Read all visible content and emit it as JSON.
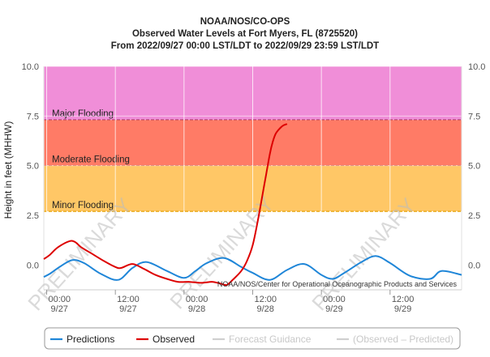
{
  "chart_data": {
    "type": "line",
    "title": [
      "NOAA/NOS/CO-OPS",
      "Observed Water Levels at Fort Myers, FL (8725520)",
      "From 2022/09/27 00:00 LST/LDT to 2022/09/29 23:59 LST/LDT"
    ],
    "ylabel": "Height in feet (MHHW)",
    "ylim": [
      -1.25,
      10.0
    ],
    "yticks": [
      "10.0",
      "7.5",
      "5.0",
      "2.5",
      "0.0"
    ],
    "ytick_values": [
      10.0,
      7.5,
      5.0,
      2.5,
      0.0
    ],
    "xlim_hours": [
      -0.5,
      72.5
    ],
    "xticks": [
      {
        "hour": 0,
        "time": "00:00",
        "date": "9/27"
      },
      {
        "hour": 12,
        "time": "12:00",
        "date": "9/27"
      },
      {
        "hour": 24,
        "time": "00:00",
        "date": "9/28"
      },
      {
        "hour": 36,
        "time": "12:00",
        "date": "9/28"
      },
      {
        "hour": 48,
        "time": "00:00",
        "date": "9/29"
      },
      {
        "hour": 60,
        "time": "12:00",
        "date": "9/29"
      }
    ],
    "flood_bands": [
      {
        "name": "Major Flooding",
        "from": 7.3,
        "to": 10.0,
        "color": "#f08ed8",
        "line_color": "#7a0a3c"
      },
      {
        "name": "Moderate Flooding",
        "from": 5.0,
        "to": 7.3,
        "color": "#ff7b66",
        "line_color": "#a30000"
      },
      {
        "name": "Minor Flooding",
        "from": 2.7,
        "to": 5.0,
        "color": "#ffc766",
        "line_color": "#e6a100"
      }
    ],
    "series": [
      {
        "name": "Predictions",
        "color": "#1f86d8",
        "x": [
          -0.5,
          0.5,
          2.5,
          4.5,
          6.5,
          9.5,
          12.5,
          15,
          17.5,
          21,
          24,
          26,
          28,
          31,
          34,
          36,
          39,
          42,
          45,
          48,
          50,
          52,
          55,
          57.5,
          60,
          63.5,
          67,
          69,
          72.5
        ],
        "values": [
          -0.6,
          -0.45,
          -0.05,
          0.25,
          0.1,
          -0.45,
          -0.75,
          -0.15,
          0.15,
          -0.3,
          -0.65,
          -0.3,
          0.1,
          0.35,
          -0.1,
          -0.4,
          -0.75,
          -0.25,
          0.05,
          -0.5,
          -0.7,
          -0.4,
          0.15,
          0.45,
          0.1,
          -0.55,
          -0.7,
          -0.3,
          -0.5
        ]
      },
      {
        "name": "Observed",
        "color": "#dd0000",
        "x": [
          -0.5,
          0.5,
          2,
          4,
          5,
          6,
          8,
          10,
          12,
          13,
          15,
          17,
          19,
          21,
          23,
          25,
          27,
          29,
          30.5,
          31.5,
          32.5,
          34,
          35,
          36,
          37,
          38,
          38.5,
          39,
          39.5,
          40,
          40.5,
          41,
          41.5,
          42
        ],
        "values": [
          0.3,
          0.5,
          0.9,
          1.2,
          1.15,
          0.9,
          0.55,
          0.2,
          -0.1,
          -0.15,
          0.05,
          -0.2,
          -0.5,
          -0.7,
          -0.85,
          -0.85,
          -0.9,
          -0.85,
          -0.95,
          -1.0,
          -0.75,
          -0.3,
          0.2,
          1.0,
          2.4,
          4.0,
          4.8,
          5.6,
          6.2,
          6.6,
          6.8,
          6.95,
          7.05,
          7.1
        ]
      }
    ],
    "legend": [
      {
        "name": "Predictions",
        "color": "#1f86d8",
        "active": true
      },
      {
        "name": "Observed",
        "color": "#dd0000",
        "active": true
      },
      {
        "name": "Forecast Guidance",
        "color": "#cfcfcf",
        "active": false
      },
      {
        "name": "(Observed – Predicted)",
        "color": "#cfcfcf",
        "active": false
      }
    ],
    "watermark": "PRELIMINARY",
    "credit": "NOAA/NOS/Center for Operational Oceanographic Products and Services"
  }
}
